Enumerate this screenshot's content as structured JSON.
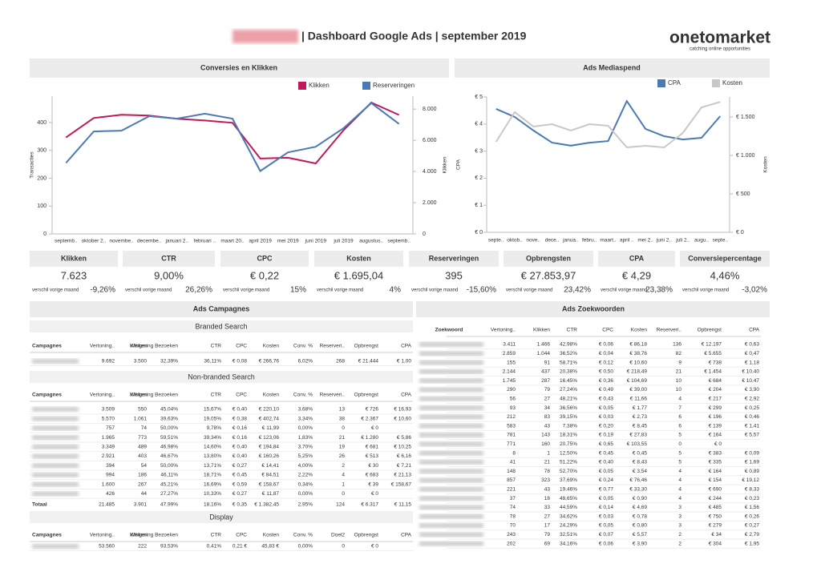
{
  "header": {
    "title": "| Dashboard Google Ads | september 2019",
    "logo": "onetomarket",
    "tagline": "catching online opportunities"
  },
  "chart_data": [
    {
      "type": "line",
      "title": "Conversies en Klikken",
      "categories": [
        "septemb..",
        "oktober 2..",
        "novembe..",
        "decembe..",
        "januari 2..",
        "februari ..",
        "maart 20..",
        "april 2019",
        "mei 2019",
        "juni 2019",
        "juli 2019",
        "augustus..",
        "septemb.."
      ],
      "series": [
        {
          "name": "Klikken",
          "color": "#c0185a",
          "axis": "y2",
          "values": [
            6180,
            7430,
            7640,
            7580,
            7380,
            7270,
            7120,
            4830,
            4880,
            4520,
            6650,
            8420,
            7623
          ]
        },
        {
          "name": "Reserveringen",
          "color": "#4a7ab5",
          "values": [
            255,
            368,
            371,
            423,
            414,
            432,
            414,
            226,
            293,
            313,
            380,
            470,
            395
          ]
        }
      ],
      "ylim": [
        0,
        495
      ],
      "yticks": [
        0,
        100,
        200,
        300,
        400
      ],
      "y2lim": [
        0,
        8830
      ],
      "y2ticks": [
        0,
        {
          "value": 2000,
          "label": "2.000"
        },
        {
          "value": 4000,
          "label": "4.000"
        },
        {
          "value": 6000,
          "label": "6.000"
        },
        {
          "value": 8000,
          "label": "8.000"
        }
      ],
      "ylabel": "Transacties",
      "y2label": "Klikken"
    },
    {
      "type": "line",
      "title": "Ads Mediaspend",
      "categories": [
        "septe..",
        "oktob..",
        "nove..",
        "dece..",
        "janua..",
        "febru..",
        "maart..",
        "april ..",
        "mei 2..",
        "juni 2..",
        "juli 2..",
        "augu..",
        "septe.."
      ],
      "series": [
        {
          "name": "CPA",
          "color": "#4a7ab5",
          "values": [
            4.56,
            4.26,
            3.76,
            3.31,
            3.2,
            3.31,
            3.37,
            4.85,
            3.82,
            3.55,
            3.43,
            3.49,
            4.29
          ]
        },
        {
          "name": "Kosten",
          "color": "#c8c8c8",
          "axis": "y2",
          "values": [
            1177,
            1563,
            1375,
            1406,
            1323,
            1406,
            1385,
            1104,
            1125,
            1104,
            1292,
            1625,
            1695
          ]
        }
      ],
      "ylim": [
        0,
        5
      ],
      "yticks": [
        {
          "value": 0,
          "label": "€ 0"
        },
        {
          "value": 1,
          "label": "€ 1"
        },
        {
          "value": 2,
          "label": "€ 2"
        },
        {
          "value": 3,
          "label": "€ 3"
        },
        {
          "value": 4,
          "label": "€ 4"
        },
        {
          "value": 5,
          "label": "€ 5"
        }
      ],
      "y2lim": [
        0,
        1760
      ],
      "y2ticks": [
        {
          "value": 0,
          "label": "€ 0"
        },
        {
          "value": 500,
          "label": "€ 500"
        },
        {
          "value": 1000,
          "label": "€ 1.000"
        },
        {
          "value": 1500,
          "label": "€ 1.500"
        }
      ],
      "ylabel": "CPA",
      "y2label": "Kosten"
    }
  ],
  "kpis": {
    "change_label": "verschil vorige maand",
    "items": [
      {
        "name": "Klikken",
        "value": "7.623",
        "change": "-9,26%",
        "color": "#b0174f"
      },
      {
        "name": "CTR",
        "value": "9,00%",
        "change": "26,26%",
        "color": "#3f8a3f"
      },
      {
        "name": "CPC",
        "value": "€ 0,22",
        "change": "15%",
        "color": "#b0174f"
      },
      {
        "name": "Kosten",
        "value": "€ 1.695,04",
        "change": "4%",
        "color": "#b0174f"
      },
      {
        "name": "Reserveringen",
        "value": "395",
        "change": "-15,60%",
        "color": "#b0174f"
      },
      {
        "name": "Opbrengsten",
        "value": "€ 27.853,97",
        "change": "23,42%",
        "color": "#3f8a3f"
      },
      {
        "name": "CPA",
        "value": "€ 4,29",
        "change": "23,38%",
        "color": "#b0174f"
      },
      {
        "name": "Conversiepercentage",
        "value": "4,46%",
        "change": "-3,02%",
        "color": "#b0174f"
      }
    ]
  },
  "campaigns": {
    "title": "Ads Campagnes",
    "tables": [
      {
        "title": "Branded Search",
        "columns": [
          "Campagnes",
          "Vertoning..",
          "Klikken",
          "Weigering Bezoeken",
          "CTR",
          "CPC",
          "Kosten",
          "Conv. %",
          "Reserveri..",
          "Opbrengst",
          "CPA"
        ],
        "rows": [
          [
            "9.692",
            "3.500",
            "32,39%",
            "36,11%",
            "€ 0,08",
            "€ 266,76",
            "6,02%",
            "268",
            "€ 21.444",
            "€ 1,00"
          ]
        ]
      },
      {
        "title": "Non-branded Search",
        "columns": [
          "Campagnes",
          "Vertoning..",
          "Klikken",
          "Weigering Bezoeken",
          "CTR",
          "CPC",
          "Kosten",
          "Conv. %",
          "Reserveri..",
          "Opbrengst",
          "CPA"
        ],
        "rows": [
          [
            "3.509",
            "550",
            "45,04%",
            "15,67%",
            "€ 0,40",
            "€ 220,10",
            "3,68%",
            "13",
            "€ 726",
            "€ 16,93"
          ],
          [
            "5.570",
            "1.061",
            "39,63%",
            "19,05%",
            "€ 0,38",
            "€ 402,74",
            "3,34%",
            "38",
            "€ 2.367",
            "€ 10,60"
          ],
          [
            "757",
            "74",
            "50,00%",
            "9,78%",
            "€ 0,16",
            "€ 11,99",
            "0,00%",
            "0",
            "€ 0"
          ],
          [
            "1.965",
            "773",
            "59,51%",
            "39,34%",
            "€ 0,16",
            "€ 123,06",
            "1,83%",
            "21",
            "€ 1.280",
            "€ 5,86"
          ],
          [
            "3.349",
            "489",
            "46,98%",
            "14,60%",
            "€ 0,40",
            "€ 194,84",
            "3,70%",
            "19",
            "€ 681",
            "€ 10,25"
          ],
          [
            "2.921",
            "403",
            "46,67%",
            "13,80%",
            "€ 0,40",
            "€ 160,26",
            "5,25%",
            "26",
            "€ 513",
            "€ 6,16"
          ],
          [
            "394",
            "54",
            "50,00%",
            "13,71%",
            "€ 0,27",
            "€ 14,41",
            "4,00%",
            "2",
            "€ 30",
            "€ 7,21"
          ],
          [
            "994",
            "186",
            "46,11%",
            "18,71%",
            "€ 0,45",
            "€ 84,51",
            "2,22%",
            "4",
            "€ 683",
            "€ 21,13"
          ],
          [
            "1.600",
            "267",
            "45,21%",
            "16,69%",
            "€ 0,59",
            "€ 158,67",
            "0,34%",
            "1",
            "€ 39",
            "€ 158,67"
          ],
          [
            "426",
            "44",
            "27,27%",
            "10,33%",
            "€ 0,27",
            "€ 11,87",
            "0,00%",
            "0",
            "€ 0"
          ]
        ],
        "total": {
          "label": "Totaal",
          "cells": [
            "21.485",
            "3.901",
            "47,99%",
            "18,16%",
            "€ 0,35",
            "€ 1.382,45",
            "2,95%",
            "124",
            "€ 6.317",
            "€ 11,15"
          ]
        }
      },
      {
        "title": "Display",
        "columns": [
          "Campagnes",
          "Vertoning..",
          "Klikken",
          "Weigering Bezoeken",
          "CTR",
          "CPC",
          "Kosten",
          "Conv. %",
          "Doel2",
          "Opbrengst",
          "CPA"
        ],
        "rows": [
          [
            "53.560",
            "222",
            "93,53%",
            "0,41%",
            "0,21 €",
            "45,83 €",
            "0,00%",
            "0",
            "€ 0"
          ]
        ]
      }
    ]
  },
  "keywords": {
    "title": "Ads Zoekwoorden",
    "columns": [
      "Zoekwoord",
      "Vertoning..",
      "Klikken",
      "CTR",
      "CPC",
      "Kosten",
      "Reserveri..",
      "Opbrengst",
      "CPA"
    ],
    "rows": [
      [
        "3.411",
        "1.466",
        "42,98%",
        "€ 0,06",
        "€ 86,18",
        "136",
        "€ 12.197",
        "€ 0,63"
      ],
      [
        "2.859",
        "1.044",
        "36,52%",
        "€ 0,04",
        "€ 38,76",
        "82",
        "€ 5.655",
        "€ 0,47"
      ],
      [
        "155",
        "91",
        "58,71%",
        "€ 0,12",
        "€ 10,60",
        "9",
        "€ 738",
        "€ 1,18"
      ],
      [
        "2.144",
        "437",
        "20,38%",
        "€ 0,50",
        "€ 218,49",
        "21",
        "€ 1.454",
        "€ 10,40"
      ],
      [
        "1.745",
        "287",
        "16,45%",
        "€ 0,36",
        "€ 104,69",
        "10",
        "€ 684",
        "€ 10,47"
      ],
      [
        "290",
        "79",
        "27,24%",
        "€ 0,49",
        "€ 39,00",
        "10",
        "€ 204",
        "€ 3,90"
      ],
      [
        "56",
        "27",
        "48,21%",
        "€ 0,43",
        "€ 11,66",
        "4",
        "€ 217",
        "€ 2,92"
      ],
      [
        "93",
        "34",
        "36,56%",
        "€ 0,05",
        "€ 1,77",
        "7",
        "€ 299",
        "€ 0,25"
      ],
      [
        "212",
        "83",
        "39,15%",
        "€ 0,03",
        "€ 2,73",
        "6",
        "€ 196",
        "€ 0,46"
      ],
      [
        "583",
        "43",
        "7,38%",
        "€ 0,20",
        "€ 8,45",
        "6",
        "€ 139",
        "€ 1,41"
      ],
      [
        "781",
        "143",
        "18,31%",
        "€ 0,19",
        "€ 27,83",
        "5",
        "€ 164",
        "€ 5,57"
      ],
      [
        "771",
        "160",
        "20,75%",
        "€ 0,65",
        "€ 103,55",
        "0",
        "€ 0"
      ],
      [
        "8",
        "1",
        "12,50%",
        "€ 0,45",
        "€ 0,45",
        "5",
        "€ 383",
        "€ 0,09"
      ],
      [
        "41",
        "21",
        "51,22%",
        "€ 0,40",
        "€ 8,43",
        "5",
        "€ 335",
        "€ 1,69"
      ],
      [
        "148",
        "78",
        "52,70%",
        "€ 0,05",
        "€ 3,54",
        "4",
        "€ 164",
        "€ 0,89"
      ],
      [
        "857",
        "323",
        "37,69%",
        "€ 0,24",
        "€ 76,46",
        "4",
        "€ 154",
        "€ 19,12"
      ],
      [
        "221",
        "43",
        "19,46%",
        "€ 0,77",
        "€ 33,30",
        "4",
        "€ 690",
        "€ 8,33"
      ],
      [
        "37",
        "18",
        "48,65%",
        "€ 0,05",
        "€ 0,90",
        "4",
        "€ 244",
        "€ 0,23"
      ],
      [
        "74",
        "33",
        "44,59%",
        "€ 0,14",
        "€ 4,69",
        "3",
        "€ 485",
        "€ 1,56"
      ],
      [
        "78",
        "27",
        "34,62%",
        "€ 0,03",
        "€ 0,78",
        "3",
        "€ 750",
        "€ 0,26"
      ],
      [
        "70",
        "17",
        "24,29%",
        "€ 0,05",
        "€ 0,80",
        "3",
        "€ 279",
        "€ 0,27"
      ],
      [
        "243",
        "79",
        "32,51%",
        "€ 0,07",
        "€ 5,57",
        "2",
        "€ 34",
        "€ 2,79"
      ],
      [
        "202",
        "69",
        "34,16%",
        "€ 0,06",
        "€ 3,90",
        "2",
        "€ 304",
        "€ 1,95"
      ]
    ]
  }
}
